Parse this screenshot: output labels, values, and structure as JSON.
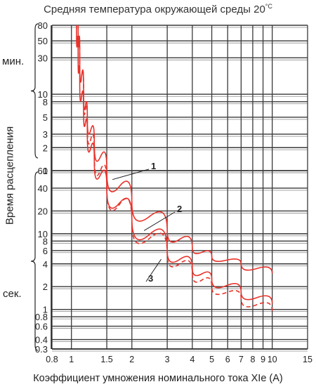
{
  "chart_data": {
    "type": "line",
    "title": "Средняя температура окружающей среды 20",
    "title_superscript": "°C",
    "xlabel": "Коэффициент умножения номинального тока XIe (A)",
    "ylabel": "Время расцепления",
    "y_unit_minutes": "мин.",
    "y_unit_seconds": "сек.",
    "x_scale": "log",
    "y_scale": "log",
    "grid": true,
    "xlim": [
      0.8,
      15
    ],
    "x_ticks": [
      {
        "v": 0.8,
        "label": "0.8"
      },
      {
        "v": 1,
        "label": "1"
      },
      {
        "v": 1.5,
        "label": "1.5"
      },
      {
        "v": 2,
        "label": "2"
      },
      {
        "v": 3,
        "label": "3"
      },
      {
        "v": 4,
        "label": "4"
      },
      {
        "v": 5,
        "label": "5"
      },
      {
        "v": 6,
        "label": "6"
      },
      {
        "v": 7,
        "label": "7"
      },
      {
        "v": 8,
        "label": "8"
      },
      {
        "v": 9,
        "label": "9"
      },
      {
        "v": 10,
        "label": "10"
      },
      {
        "v": 15,
        "label": "15"
      }
    ],
    "y_segments": [
      {
        "unit": "min",
        "ticks": [
          "1",
          "2",
          "3",
          "5",
          "8",
          "10",
          "30",
          "50",
          "80"
        ]
      },
      {
        "unit": "sec",
        "ticks": [
          "0.3",
          "0.4",
          "0.6",
          "0.8",
          "1",
          "2",
          "4",
          "6",
          "8",
          "10",
          "20",
          "40",
          "60"
        ]
      }
    ],
    "series": [
      {
        "name": "1",
        "style": "solid",
        "color": "#e8332b",
        "x": [
          1.08,
          1.1,
          1.15,
          1.2,
          1.3,
          1.5,
          2,
          3,
          4,
          5,
          7,
          10
        ],
        "y_seconds": [
          4800,
          1800,
          600,
          300,
          140,
          60,
          26,
          11,
          6.5,
          5,
          4,
          3
        ]
      },
      {
        "name": "2",
        "style": "solid",
        "color": "#e8332b",
        "x": [
          1.06,
          1.08,
          1.1,
          1.15,
          1.2,
          1.3,
          1.5,
          2,
          3,
          4,
          5,
          7,
          10
        ],
        "y_seconds": [
          4800,
          1800,
          900,
          360,
          180,
          80,
          40,
          16,
          6,
          3.5,
          2.5,
          1.7,
          1.2
        ]
      },
      {
        "name": "3",
        "style": "dashed",
        "color": "#e8332b",
        "x": [
          1.08,
          1.1,
          1.15,
          1.2,
          1.3,
          1.5,
          2,
          3,
          4,
          5,
          7,
          10
        ],
        "y_seconds": [
          4800,
          1800,
          600,
          240,
          100,
          42,
          14,
          5.4,
          3,
          2,
          1.4,
          0.95
        ]
      }
    ]
  }
}
